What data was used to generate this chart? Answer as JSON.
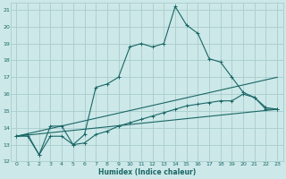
{
  "bg_color": "#cce8e8",
  "grid_color": "#aacccc",
  "line_color": "#1a6666",
  "x_label": "Humidex (Indice chaleur)",
  "xlim": [
    -0.5,
    23.5
  ],
  "ylim": [
    12,
    21.4
  ],
  "yticks": [
    12,
    13,
    14,
    15,
    16,
    17,
    18,
    19,
    20,
    21
  ],
  "xticks": [
    0,
    1,
    2,
    3,
    4,
    5,
    6,
    7,
    8,
    9,
    10,
    11,
    12,
    13,
    14,
    15,
    16,
    17,
    18,
    19,
    20,
    21,
    22,
    23
  ],
  "series1_x": [
    0,
    1,
    2,
    3,
    4,
    5,
    6,
    7,
    8,
    9,
    10,
    11,
    12,
    13,
    14,
    15,
    16,
    17,
    18,
    19,
    20,
    21,
    22,
    23
  ],
  "series1_y": [
    13.5,
    13.6,
    12.4,
    14.1,
    14.1,
    13.0,
    13.6,
    16.4,
    16.6,
    17.0,
    18.8,
    19.0,
    18.8,
    19.0,
    21.2,
    20.1,
    19.6,
    18.1,
    17.9,
    17.0,
    16.1,
    15.8,
    15.2,
    15.1
  ],
  "series2_x": [
    0,
    1,
    2,
    3,
    4,
    5,
    6,
    7,
    8,
    9,
    10,
    11,
    12,
    13,
    14,
    15,
    16,
    17,
    18,
    19,
    20,
    21,
    22,
    23
  ],
  "series2_y": [
    13.5,
    13.5,
    12.4,
    13.5,
    13.5,
    13.0,
    13.1,
    13.6,
    13.8,
    14.1,
    14.3,
    14.5,
    14.7,
    14.9,
    15.1,
    15.3,
    15.4,
    15.5,
    15.6,
    15.6,
    16.0,
    15.8,
    15.1,
    15.1
  ],
  "series3_x": [
    0,
    23
  ],
  "series3_y": [
    13.5,
    15.1
  ],
  "series4_x": [
    0,
    23
  ],
  "series4_y": [
    13.5,
    17.0
  ],
  "figsize": [
    3.2,
    2.0
  ],
  "dpi": 100
}
